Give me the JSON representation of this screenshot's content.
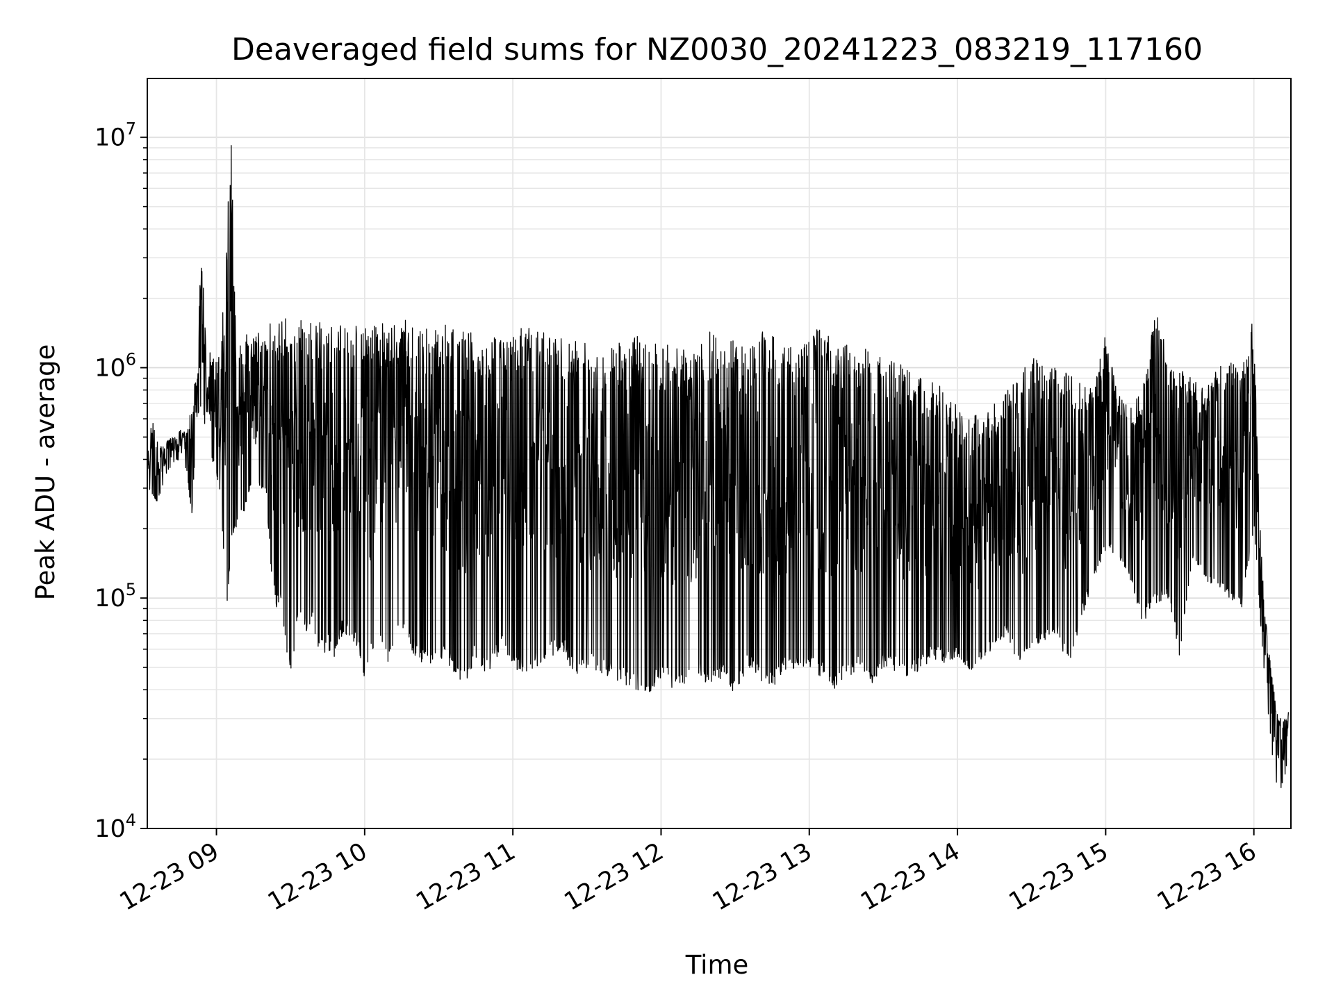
{
  "chart_data": {
    "type": "line",
    "title": "Deaveraged field sums for NZ0030_20241223_083219_117160",
    "xlabel": "Time",
    "ylabel": "Peak ADU - average",
    "x_scale": "time",
    "y_scale": "log",
    "xlim": [
      "2024-12-23 08:32",
      "2024-12-23 16:15"
    ],
    "ylim": [
      10000,
      18000000
    ],
    "x_ticks": [
      {
        "value": "2024-12-23 09:00",
        "label": "12-23 09"
      },
      {
        "value": "2024-12-23 10:00",
        "label": "12-23 10"
      },
      {
        "value": "2024-12-23 11:00",
        "label": "12-23 11"
      },
      {
        "value": "2024-12-23 12:00",
        "label": "12-23 12"
      },
      {
        "value": "2024-12-23 13:00",
        "label": "12-23 13"
      },
      {
        "value": "2024-12-23 14:00",
        "label": "12-23 14"
      },
      {
        "value": "2024-12-23 15:00",
        "label": "12-23 15"
      },
      {
        "value": "2024-12-23 16:00",
        "label": "12-23 16"
      }
    ],
    "y_ticks": [
      {
        "value": 10000,
        "base": "10",
        "exp": "4"
      },
      {
        "value": 100000,
        "base": "10",
        "exp": "5"
      },
      {
        "value": 1000000,
        "base": "10",
        "exp": "6"
      },
      {
        "value": 10000000,
        "base": "10",
        "exp": "7"
      }
    ],
    "grid": true,
    "series_color": "#000000",
    "series": [
      {
        "x": [
          "08:32",
          "08:34",
          "08:36",
          "08:38",
          "08:40",
          "08:42",
          "08:44",
          "08:46",
          "08:48",
          "08:50",
          "08:52",
          "08:54",
          "08:56",
          "08:58",
          "09:00",
          "09:02",
          "09:04",
          "09:06",
          "09:08",
          "09:10",
          "09:12",
          "09:14",
          "09:16",
          "09:18",
          "09:20",
          "09:22",
          "09:24",
          "09:26",
          "09:28",
          "09:30",
          "09:33",
          "09:36",
          "09:39",
          "09:42",
          "09:45",
          "09:48",
          "09:51",
          "09:54",
          "09:57",
          "10:00",
          "10:05",
          "10:10",
          "10:15",
          "10:20",
          "10:25",
          "10:30",
          "10:35",
          "10:40",
          "10:45",
          "10:50",
          "10:55",
          "11:00",
          "11:05",
          "11:10",
          "11:15",
          "11:20",
          "11:25",
          "11:30",
          "11:35",
          "11:40",
          "11:45",
          "11:50",
          "11:55",
          "12:00",
          "12:05",
          "12:10",
          "12:15",
          "12:20",
          "12:25",
          "12:30",
          "12:35",
          "12:40",
          "12:45",
          "12:50",
          "12:55",
          "13:00",
          "13:05",
          "13:10",
          "13:15",
          "13:20",
          "13:25",
          "13:30",
          "13:35",
          "13:40",
          "13:45",
          "13:50",
          "13:55",
          "14:00",
          "14:05",
          "14:10",
          "14:15",
          "14:20",
          "14:25",
          "14:30",
          "14:35",
          "14:40",
          "14:45",
          "14:50",
          "14:55",
          "15:00",
          "15:05",
          "15:10",
          "15:15",
          "15:20",
          "15:25",
          "15:30",
          "15:35",
          "15:40",
          "15:45",
          "15:50",
          "15:55",
          "16:00",
          "16:02",
          "16:04",
          "16:06",
          "16:08",
          "16:10",
          "16:12",
          "16:14"
        ],
        "low": [
          300000,
          280000,
          260000,
          300000,
          350000,
          380000,
          400000,
          380000,
          360000,
          220000,
          600000,
          700000,
          500000,
          400000,
          350000,
          250000,
          70000,
          180000,
          200000,
          220000,
          250000,
          300000,
          280000,
          300000,
          300000,
          130000,
          90000,
          100000,
          60000,
          45000,
          80000,
          70000,
          75000,
          55000,
          60000,
          55000,
          70000,
          65000,
          60000,
          45000,
          65000,
          50000,
          75000,
          55000,
          50000,
          55000,
          50000,
          40000,
          55000,
          45000,
          60000,
          50000,
          45000,
          50000,
          55000,
          60000,
          45000,
          50000,
          48000,
          45000,
          42000,
          40000,
          38000,
          45000,
          40000,
          42000,
          45000,
          40000,
          45000,
          38000,
          50000,
          42000,
          40000,
          48000,
          50000,
          48000,
          45000,
          40000,
          45000,
          48000,
          42000,
          50000,
          48000,
          45000,
          48000,
          55000,
          52000,
          55000,
          45000,
          55000,
          60000,
          70000,
          48000,
          60000,
          65000,
          70000,
          50000,
          80000,
          120000,
          160000,
          150000,
          120000,
          75000,
          95000,
          100000,
          55000,
          150000,
          120000,
          110000,
          100000,
          90000,
          200000,
          100000,
          50000,
          30000,
          18000,
          14000,
          16000,
          20000
        ],
        "high": [
          400000,
          650000,
          500000,
          450000,
          480000,
          500000,
          520000,
          550000,
          520000,
          700000,
          1000000,
          3500000,
          1100000,
          1200000,
          1100000,
          1200000,
          5000000,
          12000000,
          1100000,
          1500000,
          1600000,
          1300000,
          1500000,
          1400000,
          1400000,
          1600000,
          1500000,
          1600000,
          1700000,
          1600000,
          1750000,
          1700000,
          1650000,
          1600000,
          1600000,
          1550000,
          1600000,
          1500000,
          1550000,
          1500000,
          1550000,
          1600000,
          1650000,
          1600000,
          1500000,
          1550000,
          1600000,
          1500000,
          1500000,
          1450000,
          1500000,
          1450000,
          1500000,
          1450000,
          1400000,
          1400000,
          1350000,
          1300000,
          1300000,
          1250000,
          1300000,
          1400000,
          1350000,
          1300000,
          1250000,
          1200000,
          1200000,
          1500000,
          1400000,
          1300000,
          1200000,
          1500000,
          1400000,
          1250000,
          1200000,
          1300000,
          1600000,
          1200000,
          1300000,
          1100000,
          1300000,
          1100000,
          1050000,
          1000000,
          1000000,
          900000,
          800000,
          700000,
          600000,
          650000,
          700000,
          800000,
          900000,
          1200000,
          1000000,
          1000000,
          1100000,
          900000,
          800000,
          1400000,
          800000,
          700000,
          800000,
          2100000,
          1100000,
          1000000,
          900000,
          800000,
          1000000,
          1100000,
          1000000,
          1700000,
          300000,
          100000,
          60000,
          40000,
          30000,
          30000,
          32000
        ]
      }
    ]
  }
}
